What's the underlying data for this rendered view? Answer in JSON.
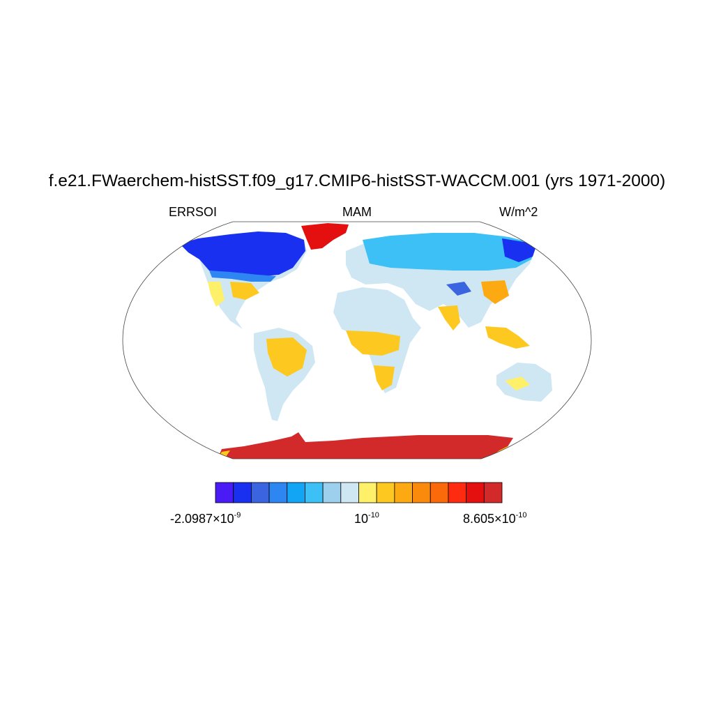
{
  "title": "f.e21.FWaerchem-histSST.f09_g17.CMIP6-histSST-WACCM.001 (yrs 1971-2000)",
  "subtitle_left": "ERRSOI",
  "subtitle_center": "MAM",
  "subtitle_right": "W/m^2",
  "projection": "Robinson",
  "colorbar": {
    "colors": [
      "#4a1bf5",
      "#1a30f0",
      "#3a64e0",
      "#2d86f2",
      "#12a5f5",
      "#3cc0f5",
      "#9cd0ec",
      "#cfe7f3",
      "#fff06a",
      "#fdc921",
      "#fdaa12",
      "#f98a0c",
      "#fb6a0a",
      "#fd2b10",
      "#e40f0f",
      "#d22a2a"
    ],
    "labels": [
      {
        "mantissa": "-2.0987",
        "times": "×",
        "base": "10",
        "exponent": "-9"
      },
      {
        "mantissa": "",
        "times": "",
        "base": "10",
        "exponent": "-10"
      },
      {
        "mantissa": "8.605",
        "times": "×",
        "base": "10",
        "exponent": "-10"
      }
    ]
  }
}
